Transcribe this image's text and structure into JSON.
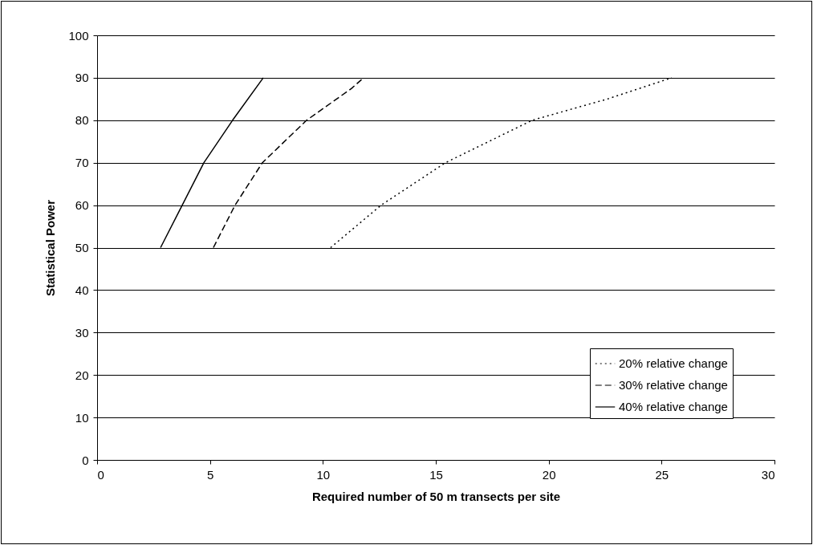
{
  "chart_data": {
    "type": "line",
    "xlabel": "Required number of 50 m transects per site",
    "ylabel": "Statistical Power",
    "xlim": [
      0,
      30
    ],
    "xticks": [
      0,
      5,
      10,
      15,
      20,
      25,
      30
    ],
    "ylim": [
      0,
      100
    ],
    "yticks": [
      0,
      10,
      20,
      30,
      40,
      50,
      60,
      70,
      80,
      90,
      100
    ],
    "grid": "y",
    "legend": "bottom right",
    "series": [
      {
        "name": "20% relative change",
        "color": "#000000",
        "line_style": "dotted",
        "x": [
          10.34,
          12.58,
          15.43,
          19.27,
          22.6,
          25.45
        ],
        "values": [
          50,
          60,
          70,
          80,
          85,
          90
        ]
      },
      {
        "name": "30% relative change",
        "color": "#000000",
        "line_style": "dashed",
        "x": [
          5.15,
          6.11,
          7.32,
          9.28,
          11.27,
          11.8
        ],
        "values": [
          50,
          60,
          70,
          80,
          87.5,
          90
        ]
      },
      {
        "name": "40% relative change",
        "color": "#000000",
        "line_style": "solid",
        "x": [
          2.81,
          3.77,
          4.73,
          6.0,
          7.36
        ],
        "values": [
          50,
          60,
          70,
          80,
          90
        ]
      }
    ]
  }
}
